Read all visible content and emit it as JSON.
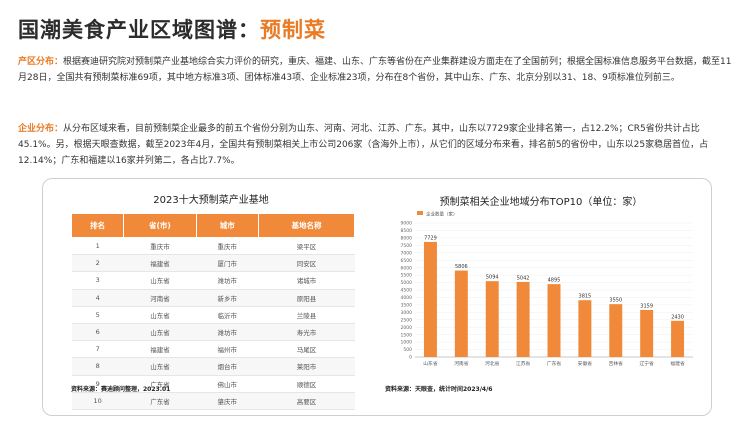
{
  "header": {
    "title_main": "国潮美食产业区域图谱：",
    "title_accent": "预制菜"
  },
  "paragraphs": {
    "p1_label": "产区分布：",
    "p1_text": "根据赛迪研究院对预制菜产业基地综合实力评价的研究，重庆、福建、山东、广东等省份在产业集群建设方面走在了全国前列；根据全国标准信息服务平台数据，截至11月28日，全国共有预制菜标准69项，其中地方标准3项、团体标准43项、企业标准23项，分布在8个省份，其中山东、广东、北京分别以31、18、9项标准位列前三。",
    "p2_label": "企业分布：",
    "p2_text": "从分布区域来看，目前预制菜企业最多的前五个省份分别为山东、河南、河北、江苏、广东。其中，山东以7729家企业排名第一，占12.2%；CR5省份共计占比45.1%。另，根据天眼查数据，截至2023年4月，全国共有预制菜相关上市公司206家（含海外上市），从它们的区域分布来看，排名前5的省份中，山东以25家稳居首位，占12.14%；广东和福建以16家并列第二，各占比7.7%。"
  },
  "table": {
    "title": "2023十大预制菜产业基地",
    "headers": [
      "排名",
      "省(市)",
      "城市",
      "基地名称"
    ],
    "rows": [
      [
        "1",
        "重庆市",
        "重庆市",
        "梁平区"
      ],
      [
        "2",
        "福建省",
        "厦门市",
        "同安区"
      ],
      [
        "3",
        "山东省",
        "潍坊市",
        "诸城市"
      ],
      [
        "4",
        "河南省",
        "新乡市",
        "原阳县"
      ],
      [
        "5",
        "山东省",
        "临沂市",
        "兰陵县"
      ],
      [
        "6",
        "山东省",
        "潍坊市",
        "寿光市"
      ],
      [
        "7",
        "福建省",
        "福州市",
        "马尾区"
      ],
      [
        "8",
        "山东省",
        "烟台市",
        "莱阳市"
      ],
      [
        "9",
        "广东省",
        "佛山市",
        "顺德区"
      ],
      [
        "10",
        "广东省",
        "肇庆市",
        "高要区"
      ]
    ],
    "source": "资料来源：赛迪顾问整理，2023.01"
  },
  "chart": {
    "source": "资料来源：天眼查，统计时间2023/4/6"
  },
  "chart_data": {
    "type": "bar",
    "title": "预制菜相关企业地域分布TOP10（单位：家）",
    "legend": [
      "企业数量（家）"
    ],
    "categories": [
      "山东省",
      "河南省",
      "河北省",
      "江苏省",
      "广东省",
      "安徽省",
      "吉林省",
      "辽宁省",
      "福建省"
    ],
    "values": [
      7729,
      5806,
      5094,
      5042,
      4895,
      3815,
      3550,
      3159,
      2430
    ],
    "ylim": [
      0,
      9000
    ],
    "yticks": [
      0,
      500,
      1000,
      1500,
      2000,
      2500,
      3000,
      3500,
      4000,
      4500,
      5000,
      5500,
      6000,
      6500,
      7000,
      7500,
      8000,
      8500,
      9000
    ],
    "bar_color": "#f08a3a"
  }
}
